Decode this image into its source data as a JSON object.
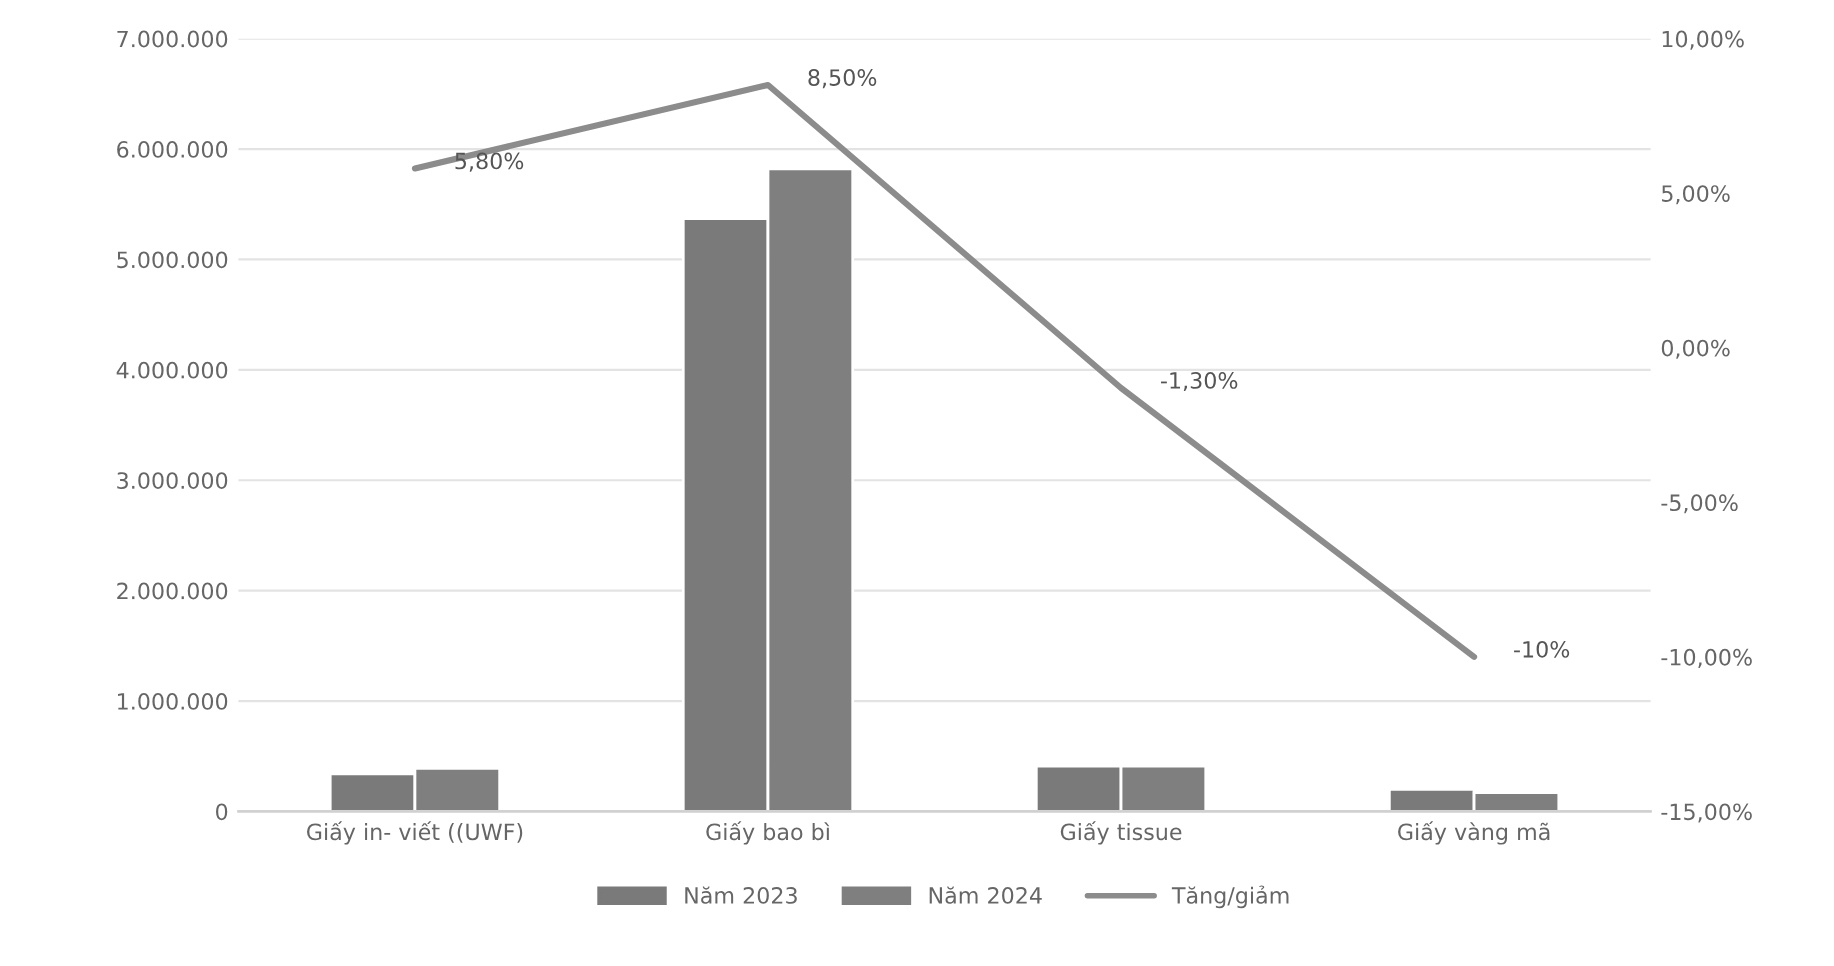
{
  "chart_data": {
    "type": "bar",
    "categories": [
      "Giấy in- viết ((UWF)",
      "Giấy bao bì",
      "Giấy tissue",
      "Giấy vàng mã"
    ],
    "series": [
      {
        "name": "Năm 2023",
        "color": "#7a7a7a",
        "values": [
          340000,
          5370000,
          410000,
          200000
        ]
      },
      {
        "name": "Năm 2024",
        "color": "#7f7f7f",
        "values": [
          390000,
          5820000,
          410000,
          170000
        ]
      },
      {
        "name": "Tăng/giảm",
        "type": "line",
        "axis": "y2",
        "color": "#8c8c8c",
        "values": [
          5.8,
          8.5,
          -1.3,
          -10
        ],
        "value_labels": [
          "5,80%",
          "8,50%",
          "-1,30%",
          "-10%"
        ]
      }
    ],
    "ylim": [
      0,
      7000000
    ],
    "yticks": [
      {
        "value": 0,
        "label": "0"
      },
      {
        "value": 1000000,
        "label": "1.000.000"
      },
      {
        "value": 2000000,
        "label": "2.000.000"
      },
      {
        "value": 3000000,
        "label": "3.000.000"
      },
      {
        "value": 4000000,
        "label": "4.000.000"
      },
      {
        "value": 5000000,
        "label": "5.000.000"
      },
      {
        "value": 6000000,
        "label": "6.000.000"
      },
      {
        "value": 7000000,
        "label": "7.000.000"
      }
    ],
    "y2lim": [
      -15,
      10
    ],
    "y2ticks": [
      {
        "value": -15,
        "label": "-15,00%"
      },
      {
        "value": -10,
        "label": "-10,00%"
      },
      {
        "value": -5,
        "label": "-5,00%"
      },
      {
        "value": 0,
        "label": "0,00%"
      },
      {
        "value": 5,
        "label": "5,00%"
      },
      {
        "value": 10,
        "label": "10,00%"
      }
    ],
    "grid": "y",
    "legend": "bottom",
    "marker": "none",
    "line_style": "solid"
  }
}
